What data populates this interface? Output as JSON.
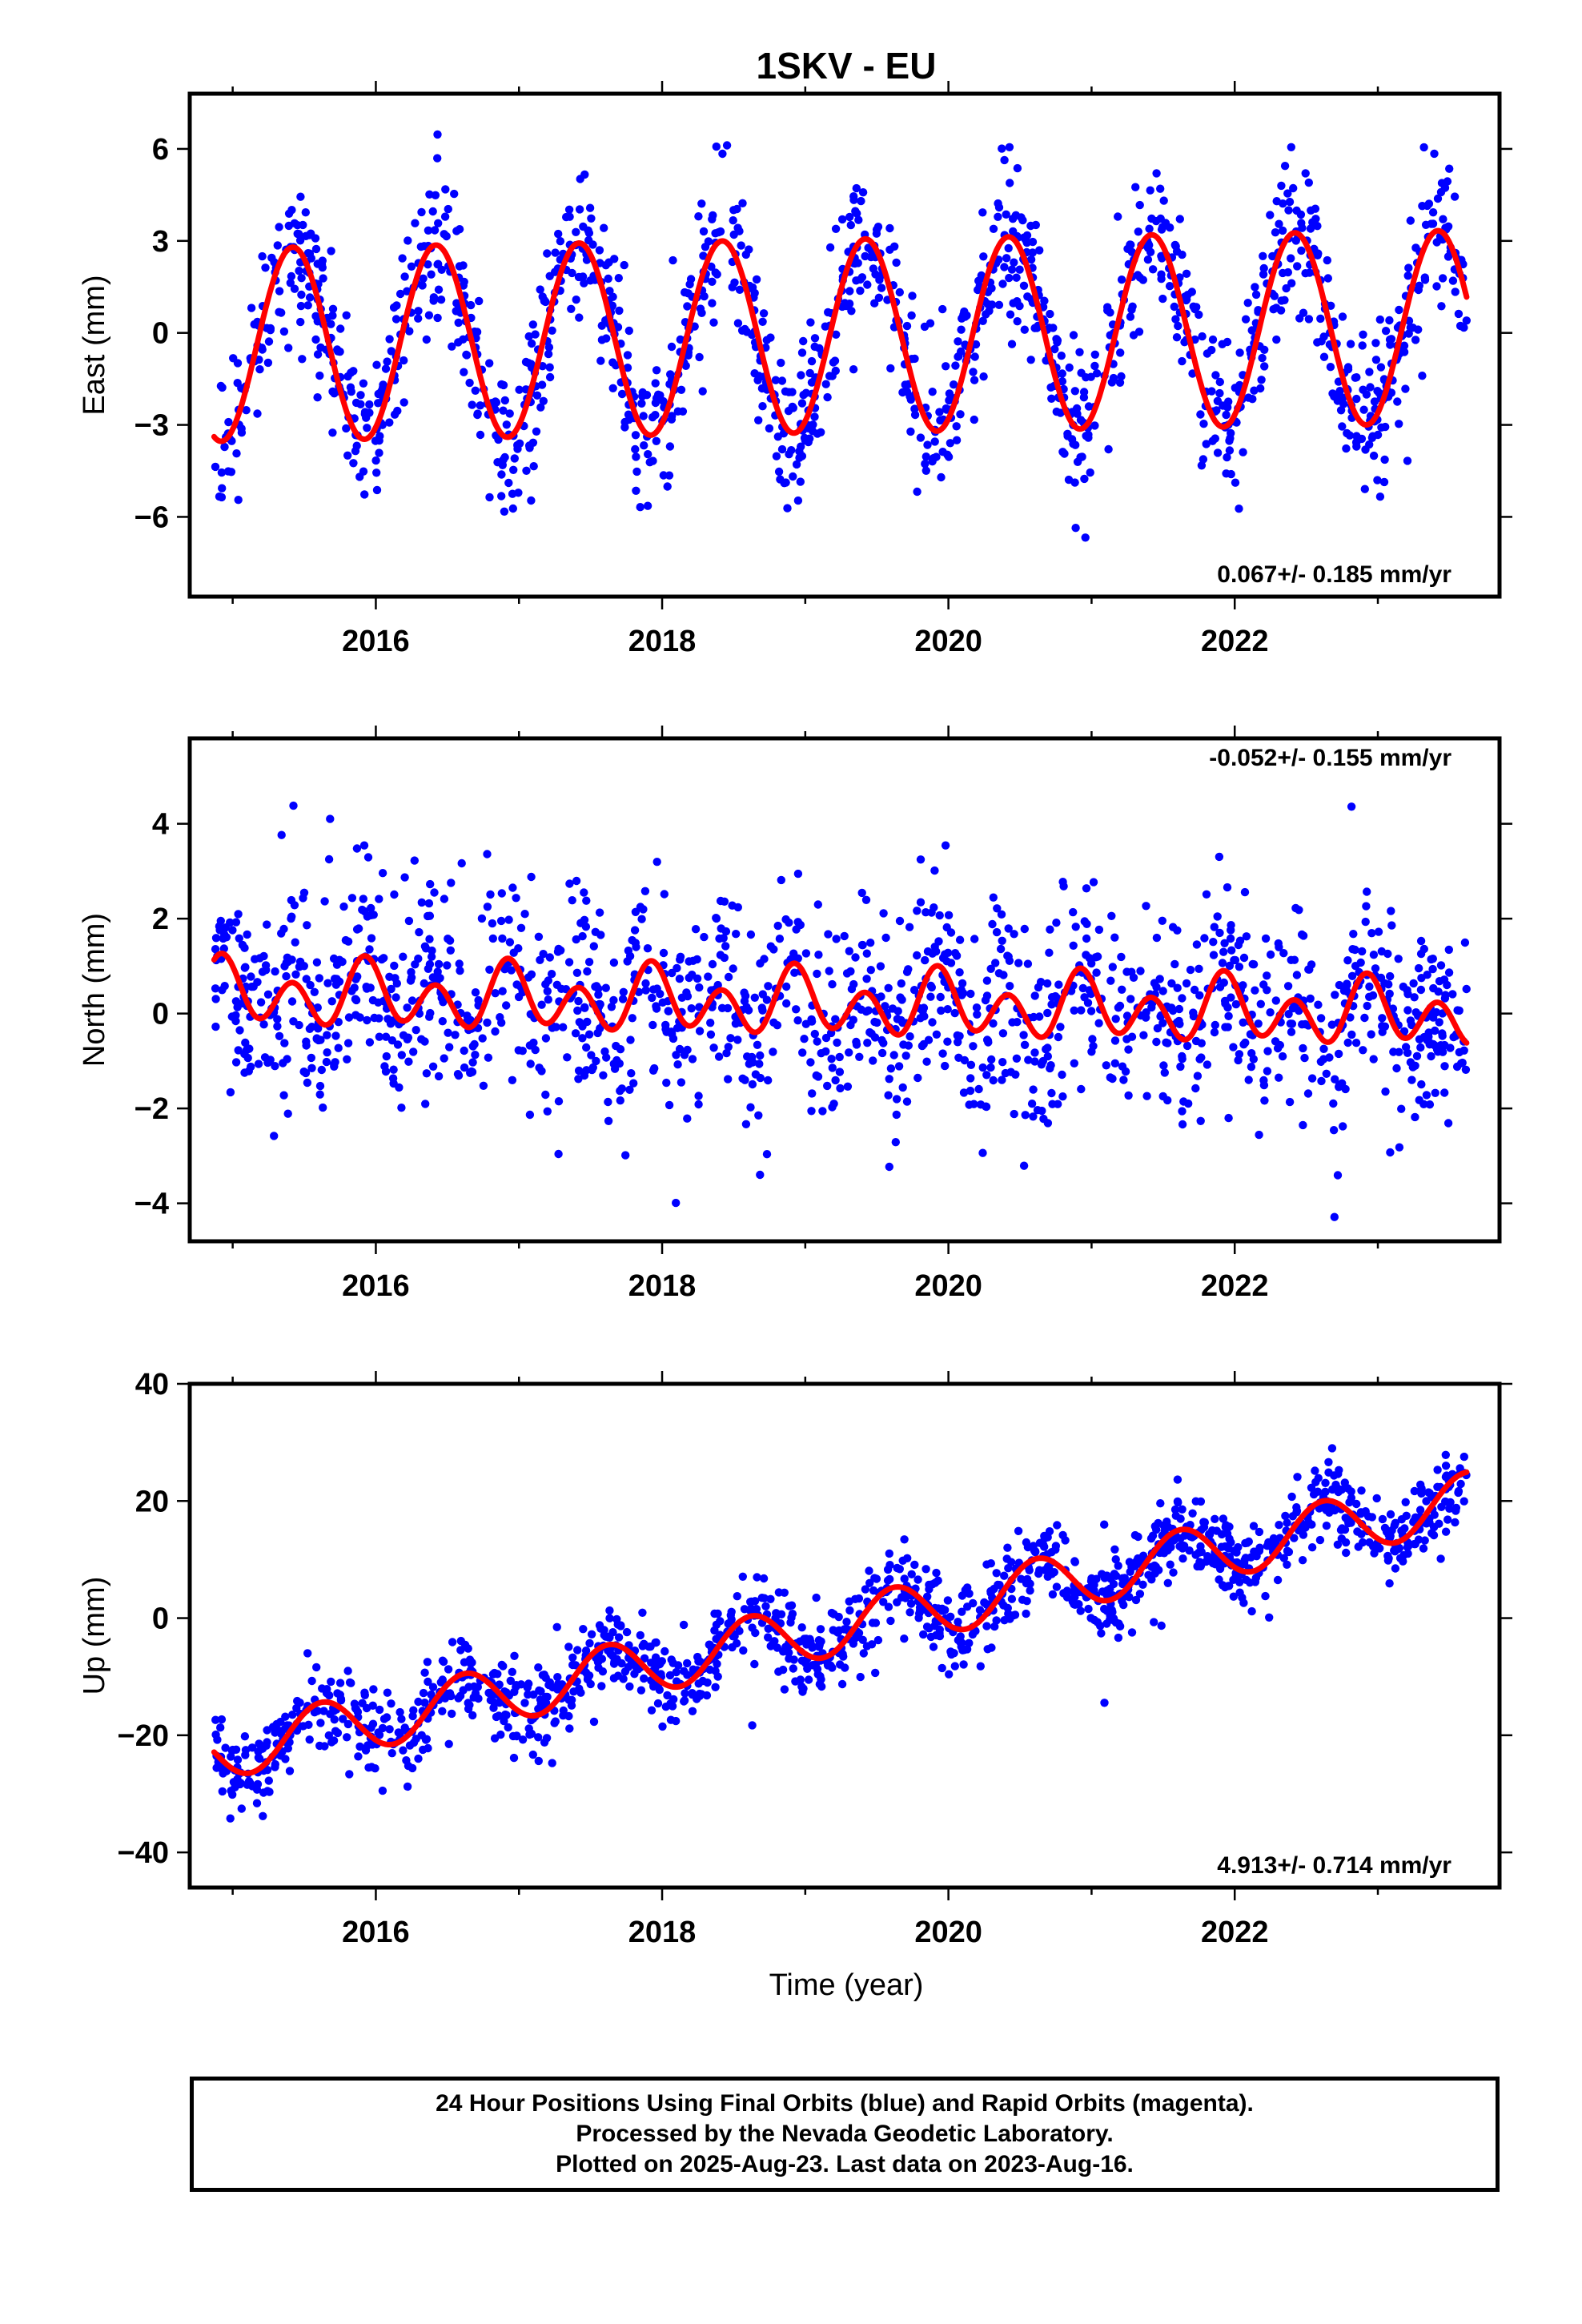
{
  "title": "1SKV - EU",
  "colors": {
    "final_orbits": "#0000ff",
    "model_fit": "#ff0000",
    "frame": "#000000"
  },
  "xlabel": "Time (year)",
  "chart_data": [
    {
      "type": "scatter",
      "panel": "east",
      "ylabel": "East (mm)",
      "xlim": [
        2014.7,
        2023.85
      ],
      "ylim": [
        -8.6,
        7.8
      ],
      "xticks": [
        2016,
        2018,
        2020,
        2022
      ],
      "yticks": [
        6,
        3,
        0,
        -3,
        -6
      ],
      "rate_text": "0.067+/- 0.185 mm/yr",
      "rate_position": "bottom-right",
      "data_range": [
        2014.87,
        2023.62
      ],
      "model": {
        "trend_mm_per_yr": 0.067,
        "offset_mm": -0.1,
        "annual_amp_mm": 3.15,
        "annual_peak_year_frac": 0.42,
        "semiannual_amp_mm": 0.0,
        "semiannual_phase_year_frac": 0.0
      },
      "noise_sigma_mm": 1.25,
      "point_count": 1450
    },
    {
      "type": "scatter",
      "panel": "north",
      "ylabel": "North (mm)",
      "xlim": [
        2014.7,
        2023.85
      ],
      "ylim": [
        -4.8,
        5.8
      ],
      "xticks": [
        2016,
        2018,
        2020,
        2022
      ],
      "yticks": [
        4,
        2,
        0,
        -2,
        -4
      ],
      "rate_text": "-0.052+/- 0.155 mm/yr",
      "rate_position": "top-right",
      "data_range": [
        2014.87,
        2023.62
      ],
      "model": {
        "trend_mm_per_yr": -0.052,
        "offset_mm": 0.2,
        "annual_amp_mm": 0.3,
        "annual_peak_year_frac": 0.95,
        "semiannual_amp_mm": 0.55,
        "semiannual_phase_year_frac": 0.42
      },
      "noise_sigma_mm": 1.05,
      "point_count": 1450
    },
    {
      "type": "scatter",
      "panel": "up",
      "ylabel": "Up (mm)",
      "xlim": [
        2014.7,
        2023.85
      ],
      "ylim": [
        -46,
        40
      ],
      "xticks": [
        2016,
        2018,
        2020,
        2022
      ],
      "yticks": [
        40,
        20,
        0,
        -20,
        -40
      ],
      "rate_text": "4.913+/- 0.714 mm/yr",
      "rate_position": "bottom-right",
      "data_range": [
        2014.87,
        2023.62
      ],
      "model": {
        "trend_mm_per_yr": 4.913,
        "offset_mm": -1.6,
        "annual_amp_mm": 4.8,
        "annual_peak_year_frac": 0.62,
        "semiannual_amp_mm": 0.0,
        "semiannual_phase_year_frac": 0.0
      },
      "noise_sigma_mm": 3.4,
      "point_count": 1450
    }
  ],
  "footer": {
    "line1": "24 Hour Positions Using Final Orbits (blue) and Rapid Orbits (magenta).",
    "line2": "Processed by the Nevada Geodetic Laboratory.",
    "line3": "Plotted on 2025-Aug-23. Last data on 2023-Aug-16."
  }
}
